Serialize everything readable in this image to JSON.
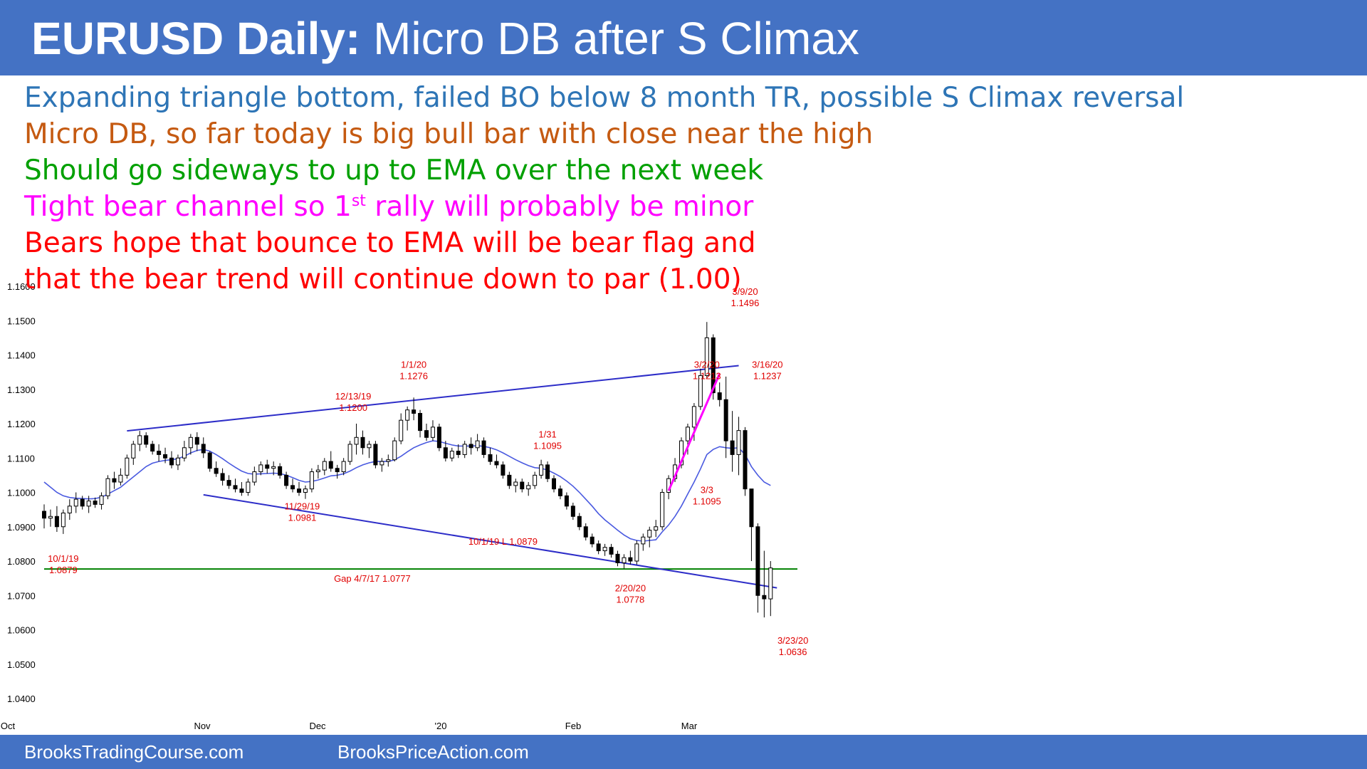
{
  "header": {
    "title_bold": "EURUSD Daily:",
    "title_rest": " Micro DB after S Climax"
  },
  "notes": [
    {
      "text": "Expanding triangle bottom, failed BO below 8 month TR, possible S Climax reversal",
      "color": "#2e75b6"
    },
    {
      "text": "Micro DB, so far today is big bull bar with close near the high",
      "color": "#c55a11"
    },
    {
      "text": "Should go sideways to up to EMA over the next week",
      "color": "#00a000"
    },
    {
      "text": "Tight bear channel so 1",
      "sup": "st",
      "text_after": " rally will probably be minor",
      "color": "#ff00ff"
    },
    {
      "text": "Bears hope that bounce to EMA will be bear flag and",
      "color": "#ff0000"
    },
    {
      "text": "that the bear trend will continue down to par (1.00)",
      "color": "#ff0000"
    }
  ],
  "chart_data": {
    "type": "candlestick",
    "ylim": [
      1.04,
      1.16
    ],
    "y_ticks": [
      "1.1600",
      "1.1500",
      "1.1400",
      "1.1300",
      "1.1200",
      "1.1100",
      "1.1000",
      "1.0900",
      "1.0800",
      "1.0700",
      "1.0600",
      "1.0500",
      "1.0400"
    ],
    "x_ticks": [
      "Oct",
      "Nov",
      "Dec",
      "'20",
      "Feb",
      "Mar"
    ],
    "bars": [
      {
        "o": 1.0945,
        "h": 1.0965,
        "l": 1.0895,
        "c": 1.0925
      },
      {
        "o": 1.0925,
        "h": 1.095,
        "l": 1.09,
        "c": 1.093
      },
      {
        "o": 1.093,
        "h": 1.096,
        "l": 1.0885,
        "c": 1.09
      },
      {
        "o": 1.09,
        "h": 1.095,
        "l": 1.0879,
        "c": 1.094
      },
      {
        "o": 1.094,
        "h": 1.098,
        "l": 1.092,
        "c": 1.096
      },
      {
        "o": 1.096,
        "h": 1.1,
        "l": 1.094,
        "c": 1.098
      },
      {
        "o": 1.098,
        "h": 1.099,
        "l": 1.095,
        "c": 1.096
      },
      {
        "o": 1.096,
        "h": 1.099,
        "l": 1.094,
        "c": 1.0975
      },
      {
        "o": 1.0975,
        "h": 1.0985,
        "l": 1.0955,
        "c": 1.0965
      },
      {
        "o": 1.0965,
        "h": 1.1,
        "l": 1.095,
        "c": 1.099
      },
      {
        "o": 1.099,
        "h": 1.105,
        "l": 1.098,
        "c": 1.104
      },
      {
        "o": 1.104,
        "h": 1.106,
        "l": 1.101,
        "c": 1.103
      },
      {
        "o": 1.103,
        "h": 1.107,
        "l": 1.102,
        "c": 1.105
      },
      {
        "o": 1.105,
        "h": 1.111,
        "l": 1.104,
        "c": 1.11
      },
      {
        "o": 1.11,
        "h": 1.115,
        "l": 1.108,
        "c": 1.114
      },
      {
        "o": 1.114,
        "h": 1.1179,
        "l": 1.112,
        "c": 1.1165
      },
      {
        "o": 1.1165,
        "h": 1.1175,
        "l": 1.113,
        "c": 1.114
      },
      {
        "o": 1.114,
        "h": 1.115,
        "l": 1.111,
        "c": 1.112
      },
      {
        "o": 1.112,
        "h": 1.114,
        "l": 1.109,
        "c": 1.111
      },
      {
        "o": 1.111,
        "h": 1.113,
        "l": 1.1085,
        "c": 1.11
      },
      {
        "o": 1.11,
        "h": 1.112,
        "l": 1.107,
        "c": 1.108
      },
      {
        "o": 1.108,
        "h": 1.111,
        "l": 1.1065,
        "c": 1.11
      },
      {
        "o": 1.11,
        "h": 1.115,
        "l": 1.109,
        "c": 1.113
      },
      {
        "o": 1.113,
        "h": 1.117,
        "l": 1.111,
        "c": 1.116
      },
      {
        "o": 1.116,
        "h": 1.1175,
        "l": 1.112,
        "c": 1.114
      },
      {
        "o": 1.114,
        "h": 1.116,
        "l": 1.11,
        "c": 1.1115
      },
      {
        "o": 1.1115,
        "h": 1.112,
        "l": 1.106,
        "c": 1.107
      },
      {
        "o": 1.107,
        "h": 1.109,
        "l": 1.1045,
        "c": 1.1055
      },
      {
        "o": 1.1055,
        "h": 1.107,
        "l": 1.102,
        "c": 1.1035
      },
      {
        "o": 1.1035,
        "h": 1.105,
        "l": 1.101,
        "c": 1.102
      },
      {
        "o": 1.102,
        "h": 1.104,
        "l": 1.1,
        "c": 1.101
      },
      {
        "o": 1.101,
        "h": 1.103,
        "l": 1.099,
        "c": 1.1
      },
      {
        "o": 1.1,
        "h": 1.104,
        "l": 1.099,
        "c": 1.103
      },
      {
        "o": 1.103,
        "h": 1.1075,
        "l": 1.102,
        "c": 1.106
      },
      {
        "o": 1.106,
        "h": 1.109,
        "l": 1.105,
        "c": 1.108
      },
      {
        "o": 1.108,
        "h": 1.1095,
        "l": 1.1055,
        "c": 1.107
      },
      {
        "o": 1.107,
        "h": 1.109,
        "l": 1.105,
        "c": 1.1075
      },
      {
        "o": 1.1075,
        "h": 1.1085,
        "l": 1.104,
        "c": 1.105
      },
      {
        "o": 1.105,
        "h": 1.106,
        "l": 1.101,
        "c": 1.102
      },
      {
        "o": 1.102,
        "h": 1.104,
        "l": 1.1,
        "c": 1.101
      },
      {
        "o": 1.101,
        "h": 1.103,
        "l": 1.099,
        "c": 1.1
      },
      {
        "o": 1.1,
        "h": 1.102,
        "l": 1.0981,
        "c": 1.101
      },
      {
        "o": 1.101,
        "h": 1.107,
        "l": 1.1,
        "c": 1.106
      },
      {
        "o": 1.106,
        "h": 1.108,
        "l": 1.104,
        "c": 1.1065
      },
      {
        "o": 1.1065,
        "h": 1.11,
        "l": 1.105,
        "c": 1.109
      },
      {
        "o": 1.109,
        "h": 1.112,
        "l": 1.106,
        "c": 1.107
      },
      {
        "o": 1.107,
        "h": 1.108,
        "l": 1.104,
        "c": 1.106
      },
      {
        "o": 1.106,
        "h": 1.11,
        "l": 1.105,
        "c": 1.109
      },
      {
        "o": 1.109,
        "h": 1.115,
        "l": 1.108,
        "c": 1.114
      },
      {
        "o": 1.114,
        "h": 1.12,
        "l": 1.111,
        "c": 1.116
      },
      {
        "o": 1.116,
        "h": 1.118,
        "l": 1.111,
        "c": 1.113
      },
      {
        "o": 1.113,
        "h": 1.115,
        "l": 1.11,
        "c": 1.114
      },
      {
        "o": 1.114,
        "h": 1.115,
        "l": 1.107,
        "c": 1.108
      },
      {
        "o": 1.108,
        "h": 1.11,
        "l": 1.106,
        "c": 1.109
      },
      {
        "o": 1.109,
        "h": 1.111,
        "l": 1.1075,
        "c": 1.1095
      },
      {
        "o": 1.1095,
        "h": 1.116,
        "l": 1.109,
        "c": 1.115
      },
      {
        "o": 1.115,
        "h": 1.123,
        "l": 1.114,
        "c": 1.121
      },
      {
        "o": 1.121,
        "h": 1.125,
        "l": 1.118,
        "c": 1.124
      },
      {
        "o": 1.124,
        "h": 1.1276,
        "l": 1.121,
        "c": 1.123
      },
      {
        "o": 1.123,
        "h": 1.124,
        "l": 1.116,
        "c": 1.118
      },
      {
        "o": 1.118,
        "h": 1.12,
        "l": 1.115,
        "c": 1.116
      },
      {
        "o": 1.116,
        "h": 1.121,
        "l": 1.115,
        "c": 1.119
      },
      {
        "o": 1.119,
        "h": 1.12,
        "l": 1.112,
        "c": 1.113
      },
      {
        "o": 1.113,
        "h": 1.115,
        "l": 1.109,
        "c": 1.11
      },
      {
        "o": 1.11,
        "h": 1.113,
        "l": 1.109,
        "c": 1.112
      },
      {
        "o": 1.112,
        "h": 1.114,
        "l": 1.11,
        "c": 1.111
      },
      {
        "o": 1.111,
        "h": 1.115,
        "l": 1.11,
        "c": 1.114
      },
      {
        "o": 1.114,
        "h": 1.116,
        "l": 1.111,
        "c": 1.113
      },
      {
        "o": 1.113,
        "h": 1.117,
        "l": 1.112,
        "c": 1.115
      },
      {
        "o": 1.115,
        "h": 1.116,
        "l": 1.11,
        "c": 1.111
      },
      {
        "o": 1.111,
        "h": 1.113,
        "l": 1.108,
        "c": 1.109
      },
      {
        "o": 1.109,
        "h": 1.111,
        "l": 1.107,
        "c": 1.108
      },
      {
        "o": 1.108,
        "h": 1.109,
        "l": 1.104,
        "c": 1.105
      },
      {
        "o": 1.105,
        "h": 1.106,
        "l": 1.101,
        "c": 1.102
      },
      {
        "o": 1.102,
        "h": 1.104,
        "l": 1.1,
        "c": 1.103
      },
      {
        "o": 1.103,
        "h": 1.104,
        "l": 1.1,
        "c": 1.101
      },
      {
        "o": 1.101,
        "h": 1.103,
        "l": 1.099,
        "c": 1.102
      },
      {
        "o": 1.102,
        "h": 1.106,
        "l": 1.101,
        "c": 1.105
      },
      {
        "o": 1.105,
        "h": 1.1095,
        "l": 1.104,
        "c": 1.108
      },
      {
        "o": 1.108,
        "h": 1.109,
        "l": 1.103,
        "c": 1.104
      },
      {
        "o": 1.104,
        "h": 1.105,
        "l": 1.1,
        "c": 1.101
      },
      {
        "o": 1.101,
        "h": 1.102,
        "l": 1.098,
        "c": 1.099
      },
      {
        "o": 1.099,
        "h": 1.1,
        "l": 1.095,
        "c": 1.096
      },
      {
        "o": 1.096,
        "h": 1.097,
        "l": 1.092,
        "c": 1.093
      },
      {
        "o": 1.093,
        "h": 1.094,
        "l": 1.089,
        "c": 1.09
      },
      {
        "o": 1.09,
        "h": 1.091,
        "l": 1.086,
        "c": 1.087
      },
      {
        "o": 1.087,
        "h": 1.088,
        "l": 1.084,
        "c": 1.085
      },
      {
        "o": 1.085,
        "h": 1.086,
        "l": 1.082,
        "c": 1.083
      },
      {
        "o": 1.083,
        "h": 1.085,
        "l": 1.0815,
        "c": 1.084
      },
      {
        "o": 1.084,
        "h": 1.085,
        "l": 1.081,
        "c": 1.082
      },
      {
        "o": 1.082,
        "h": 1.083,
        "l": 1.0785,
        "c": 1.0795
      },
      {
        "o": 1.0795,
        "h": 1.082,
        "l": 1.0778,
        "c": 1.081
      },
      {
        "o": 1.081,
        "h": 1.083,
        "l": 1.079,
        "c": 1.08
      },
      {
        "o": 1.08,
        "h": 1.086,
        "l": 1.079,
        "c": 1.085
      },
      {
        "o": 1.085,
        "h": 1.088,
        "l": 1.083,
        "c": 1.087
      },
      {
        "o": 1.087,
        "h": 1.09,
        "l": 1.084,
        "c": 1.089
      },
      {
        "o": 1.089,
        "h": 1.092,
        "l": 1.087,
        "c": 1.09
      },
      {
        "o": 1.09,
        "h": 1.101,
        "l": 1.089,
        "c": 1.1
      },
      {
        "o": 1.1,
        "h": 1.105,
        "l": 1.098,
        "c": 1.104
      },
      {
        "o": 1.104,
        "h": 1.11,
        "l": 1.103,
        "c": 1.108
      },
      {
        "o": 1.108,
        "h": 1.116,
        "l": 1.107,
        "c": 1.115
      },
      {
        "o": 1.115,
        "h": 1.12,
        "l": 1.111,
        "c": 1.119
      },
      {
        "o": 1.119,
        "h": 1.126,
        "l": 1.115,
        "c": 1.125
      },
      {
        "o": 1.125,
        "h": 1.136,
        "l": 1.124,
        "c": 1.134
      },
      {
        "o": 1.134,
        "h": 1.1496,
        "l": 1.133,
        "c": 1.145
      },
      {
        "o": 1.145,
        "h": 1.146,
        "l": 1.127,
        "c": 1.129
      },
      {
        "o": 1.129,
        "h": 1.132,
        "l": 1.125,
        "c": 1.127
      },
      {
        "o": 1.127,
        "h": 1.1337,
        "l": 1.11,
        "c": 1.115
      },
      {
        "o": 1.115,
        "h": 1.1237,
        "l": 1.106,
        "c": 1.111
      },
      {
        "o": 1.111,
        "h": 1.122,
        "l": 1.105,
        "c": 1.118
      },
      {
        "o": 1.118,
        "h": 1.119,
        "l": 1.099,
        "c": 1.101
      },
      {
        "o": 1.101,
        "h": 1.1,
        "l": 1.08,
        "c": 1.09
      },
      {
        "o": 1.09,
        "h": 1.091,
        "l": 1.065,
        "c": 1.07
      },
      {
        "o": 1.07,
        "h": 1.083,
        "l": 1.0636,
        "c": 1.069
      },
      {
        "o": 1.069,
        "h": 1.08,
        "l": 1.064,
        "c": 1.078
      }
    ],
    "ema": [
      1.103,
      1.1015,
      1.1,
      1.099,
      1.0985,
      1.0983,
      1.0982,
      1.0981,
      1.0982,
      1.0986,
      1.0995,
      1.1005,
      1.1015,
      1.103,
      1.1045,
      1.106,
      1.1075,
      1.1085,
      1.109,
      1.1093,
      1.1095,
      1.1098,
      1.1105,
      1.1115,
      1.1122,
      1.1125,
      1.112,
      1.111,
      1.1098,
      1.1085,
      1.1073,
      1.1062,
      1.1055,
      1.1053,
      1.1054,
      1.1055,
      1.1056,
      1.1055,
      1.105,
      1.1043,
      1.1035,
      1.103,
      1.1032,
      1.1036,
      1.1042,
      1.1048,
      1.105,
      1.1054,
      1.1062,
      1.1072,
      1.108,
      1.1086,
      1.109,
      1.109,
      1.109,
      1.1095,
      1.1105,
      1.1118,
      1.113,
      1.1138,
      1.1145,
      1.115,
      1.1148,
      1.1143,
      1.1138,
      1.1135,
      1.1135,
      1.1135,
      1.1136,
      1.1134,
      1.113,
      1.1124,
      1.1115,
      1.1105,
      1.1095,
      1.1086,
      1.1078,
      1.1072,
      1.107,
      1.1065,
      1.1056,
      1.1046,
      1.1033,
      1.1018,
      1.1,
      1.098,
      1.096,
      1.0938,
      1.092,
      1.0905,
      1.089,
      1.0876,
      1.0865,
      1.086,
      1.0858,
      1.086,
      1.0862,
      1.0885,
      1.0905,
      1.093,
      1.096,
      1.0995,
      1.103,
      1.1068,
      1.111,
      1.1125,
      1.1133,
      1.113,
      1.1128,
      1.113,
      1.111,
      1.1075,
      1.105,
      1.103,
      1.102
    ],
    "annotations": [
      {
        "label": "3/9/20",
        "value": "1.1496",
        "x": 110,
        "y": 1.1575
      },
      {
        "label": "1/1/20",
        "value": "1.1276",
        "x": 58,
        "y": 1.1363
      },
      {
        "label": "3/2/20",
        "value": "1.1213",
        "x": 104,
        "y": 1.1363
      },
      {
        "label": "3/16/20",
        "value": "1.1237",
        "x": 113.5,
        "y": 1.1363
      },
      {
        "label": "12/13/19",
        "value": "1.1200",
        "x": 48.5,
        "y": 1.127
      },
      {
        "label": "1/31",
        "value": "1.1095",
        "x": 79,
        "y": 1.116
      },
      {
        "label": "3/3",
        "value": "1.1095",
        "x": 104,
        "y": 1.0998
      },
      {
        "label": "11/29/19",
        "value": "1.0981",
        "x": 40.5,
        "y": 1.095
      },
      {
        "label": "10/1/19",
        "value": "1.0879",
        "x": 3,
        "y": 1.0798
      },
      {
        "label": "10/1/19 L 1.0879",
        "value": "",
        "x": 72,
        "y": 1.0848
      },
      {
        "label": "Gap 4/7/17 1.0777",
        "value": "",
        "x": 51.5,
        "y": 1.074
      },
      {
        "label": "2/20/20",
        "value": "1.0778",
        "x": 92,
        "y": 1.0712
      },
      {
        "label": "3/23/20",
        "value": "1.0636",
        "x": 117.5,
        "y": 1.056
      }
    ]
  },
  "footer": {
    "left": "BrooksTradingCourse.com",
    "right": "BrooksPriceAction.com"
  },
  "colors": {
    "accent": "#4472c4",
    "bull_body": "#ffffff",
    "bear_body": "#000000",
    "ema_line": "#4a5ae0",
    "trend_line": "#2d2dc8",
    "channel_line": "#ff00ff",
    "support_line": "#008000",
    "annotation": "#e00000"
  }
}
